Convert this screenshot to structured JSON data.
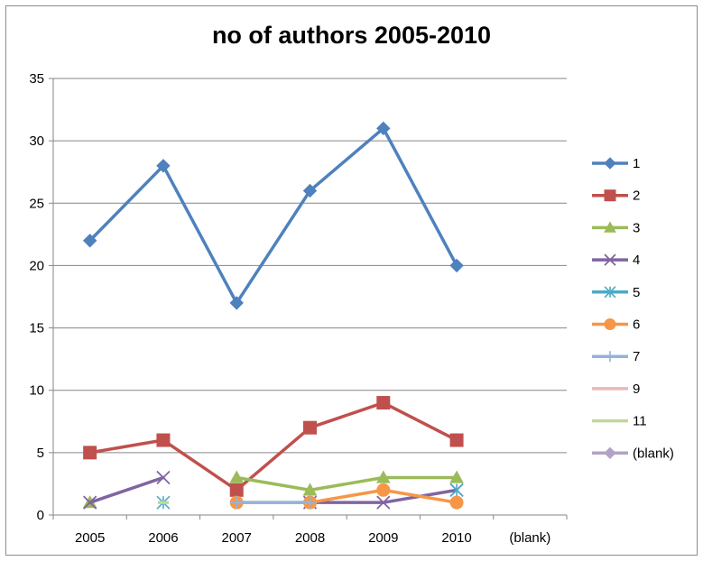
{
  "chart_data": {
    "type": "line",
    "title": "no of authors 2005-2010",
    "categories": [
      "2005",
      "2006",
      "2007",
      "2008",
      "2009",
      "2010",
      "(blank)"
    ],
    "ylim": [
      0,
      35
    ],
    "yticks": [
      0,
      5,
      10,
      15,
      20,
      25,
      30,
      35
    ],
    "grid": true,
    "legend_position": "right",
    "series": [
      {
        "name": "1",
        "color": "#4f81bd",
        "marker": "diamond",
        "values": [
          22,
          28,
          17,
          26,
          31,
          20,
          null
        ]
      },
      {
        "name": "2",
        "color": "#c0504d",
        "marker": "square",
        "values": [
          5,
          6,
          2,
          7,
          9,
          6,
          null
        ]
      },
      {
        "name": "3",
        "color": "#9bbb59",
        "marker": "triangle",
        "values": [
          1,
          null,
          3,
          2,
          3,
          3,
          null
        ]
      },
      {
        "name": "4",
        "color": "#8064a2",
        "marker": "x",
        "values": [
          1,
          3,
          null,
          1,
          1,
          2,
          null
        ]
      },
      {
        "name": "5",
        "color": "#4bacc6",
        "marker": "star",
        "values": [
          null,
          1,
          null,
          null,
          null,
          2,
          null
        ]
      },
      {
        "name": "6",
        "color": "#f79646",
        "marker": "circle",
        "values": [
          null,
          null,
          1,
          1,
          2,
          1,
          null
        ]
      },
      {
        "name": "7",
        "color": "#95b3d7",
        "marker": "plus",
        "values": [
          null,
          null,
          1,
          1,
          null,
          null,
          null
        ]
      },
      {
        "name": "9",
        "color": "#e6b9b8",
        "marker": "none",
        "values": [
          null,
          null,
          null,
          null,
          null,
          null,
          null
        ]
      },
      {
        "name": "11",
        "color": "#c3d69b",
        "marker": "none",
        "values": [
          null,
          1,
          null,
          null,
          null,
          null,
          null
        ]
      },
      {
        "name": "(blank)",
        "color": "#b3a2c7",
        "marker": "diamond",
        "values": [
          null,
          null,
          null,
          null,
          null,
          null,
          null
        ]
      }
    ]
  }
}
